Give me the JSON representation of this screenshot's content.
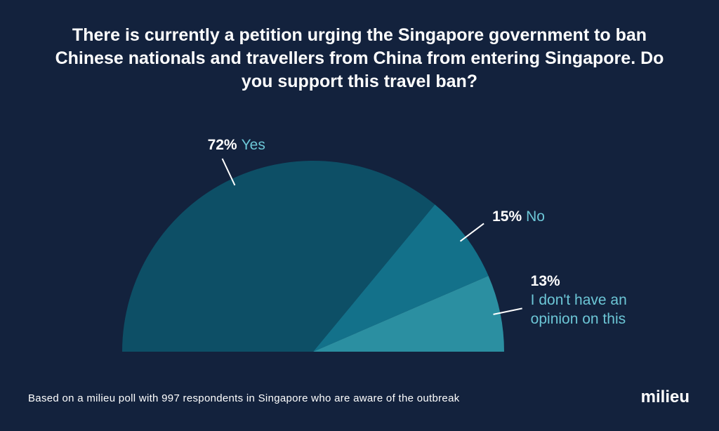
{
  "chart_data": {
    "type": "pie",
    "title": "There is currently a petition urging the Singapore government to ban Chinese nationals and travellers from China from entering Singapore. Do you support this travel ban?",
    "categories": [
      "Yes",
      "No",
      "I don't have an opinion on this"
    ],
    "values": [
      72,
      15,
      13
    ],
    "value_labels": [
      "72%",
      "15%",
      "13%"
    ],
    "colors": [
      "#0d4f66",
      "#13718a",
      "#2b8fa1"
    ],
    "footnote": "Based on a milieu poll with 997 respondents in Singapore who are aware of the outbreak",
    "brand": "milieu"
  }
}
